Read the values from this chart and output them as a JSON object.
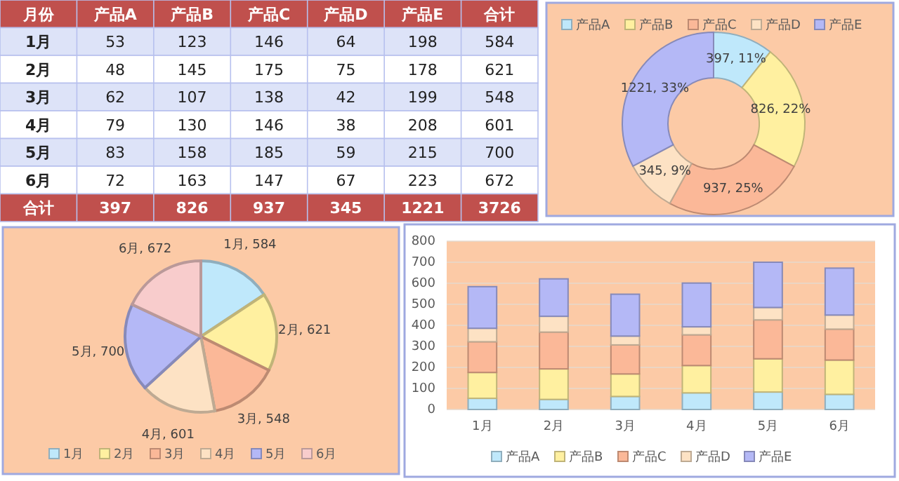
{
  "chart_data": [
    {
      "type": "heatmap",
      "ylabel": "月份",
      "categories": [
        "产品A",
        "产品B",
        "产品C",
        "产品D",
        "产品E",
        "合计"
      ],
      "y_categories": [
        "1月",
        "2月",
        "3月",
        "4月",
        "5月",
        "6月",
        "合计"
      ],
      "data_labels": true,
      "cells": [
        [
          53,
          123,
          146,
          64,
          198,
          584
        ],
        [
          48,
          145,
          175,
          75,
          178,
          621
        ],
        [
          62,
          107,
          138,
          42,
          199,
          548
        ],
        [
          79,
          130,
          146,
          38,
          208,
          601
        ],
        [
          83,
          158,
          185,
          59,
          215,
          700
        ],
        [
          72,
          163,
          147,
          67,
          223,
          672
        ],
        [
          397,
          826,
          937,
          345,
          1221,
          3726
        ]
      ]
    },
    {
      "type": "donut",
      "categories": [
        "产品A",
        "产品B",
        "产品C",
        "产品D",
        "产品E"
      ],
      "values": [
        397,
        826,
        937,
        345,
        1221
      ],
      "colors": [
        "#bfe8fb",
        "#fff0a0",
        "#fbb898",
        "#fde2c4",
        "#b4b8f6"
      ],
      "value_labels": [
        "397, 11%",
        "826, 22%",
        "937, 25%",
        "345, 9%",
        "1221, 33%"
      ],
      "legend": "top"
    },
    {
      "type": "pie",
      "categories": [
        "1月",
        "2月",
        "3月",
        "4月",
        "5月",
        "6月"
      ],
      "values": [
        584,
        621,
        548,
        601,
        700,
        672
      ],
      "colors": [
        "#bfe8fb",
        "#fff0a0",
        "#fbb898",
        "#fde2c4",
        "#b4b8f6",
        "#f8cccc"
      ],
      "value_labels": [
        "1月, 584",
        "2月, 621",
        "3月, 548",
        "4月, 601",
        "5月, 700",
        "6月, 672"
      ],
      "legend": "bottom"
    },
    {
      "type": "bar",
      "stacked": true,
      "categories": [
        "1月",
        "2月",
        "3月",
        "4月",
        "5月",
        "6月"
      ],
      "ylim": [
        0,
        800
      ],
      "yticks": [
        0,
        100,
        200,
        300,
        400,
        500,
        600,
        700,
        800
      ],
      "grid": "y",
      "legend": "bottom",
      "series": [
        {
          "name": "产品A",
          "color": "#bfe8fb",
          "values": [
            53,
            48,
            62,
            79,
            83,
            72
          ]
        },
        {
          "name": "产品B",
          "color": "#fff0a0",
          "values": [
            123,
            145,
            107,
            130,
            158,
            163
          ]
        },
        {
          "name": "产品C",
          "color": "#fbb898",
          "values": [
            146,
            175,
            138,
            146,
            185,
            147
          ]
        },
        {
          "name": "产品D",
          "color": "#fde2c4",
          "values": [
            64,
            75,
            42,
            38,
            59,
            67
          ]
        },
        {
          "name": "产品E",
          "color": "#b4b8f6",
          "values": [
            198,
            178,
            199,
            208,
            215,
            223
          ]
        }
      ]
    }
  ]
}
